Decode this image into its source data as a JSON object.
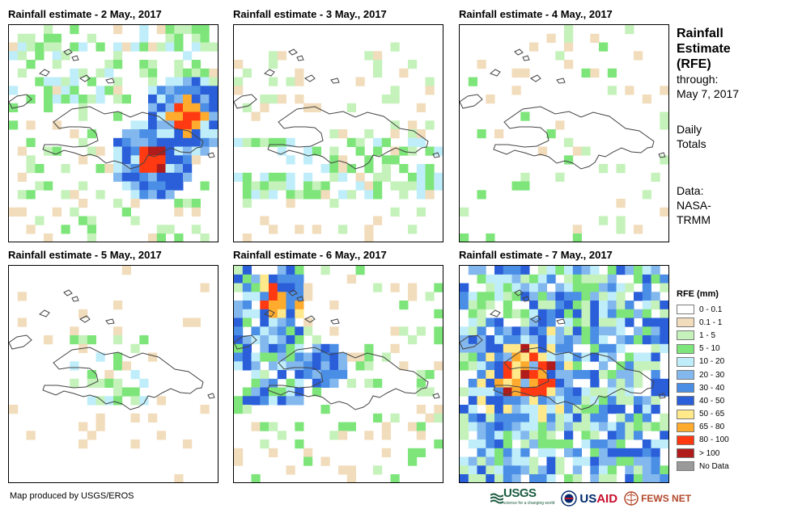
{
  "panels": [
    {
      "title": "Rainfall estimate - 2 May., 2017"
    },
    {
      "title": "Rainfall estimate - 3 May., 2017"
    },
    {
      "title": "Rainfall estimate - 4 May., 2017"
    },
    {
      "title": "Rainfall estimate - 5 May., 2017"
    },
    {
      "title": "Rainfall estimate - 6 May., 2017"
    },
    {
      "title": "Rainfall estimate - 7 May., 2017"
    }
  ],
  "side": {
    "title_line1": "Rainfall",
    "title_line2": "Estimate",
    "title_line3": "(RFE)",
    "through_label": "through:",
    "through_date": "May 7, 2017",
    "totals_line1": "Daily",
    "totals_line2": "Totals",
    "data_line1": "Data:",
    "data_line2": "NASA-",
    "data_line3": "TRMM"
  },
  "legend": {
    "title": "RFE (mm)",
    "items": [
      {
        "label": "0 - 0.1",
        "color": "#ffffff"
      },
      {
        "label": "0.1 - 1",
        "color": "#f1dcbb"
      },
      {
        "label": "1 - 5",
        "color": "#c4f2ba"
      },
      {
        "label": "5 - 10",
        "color": "#7ee57b"
      },
      {
        "label": "10 - 20",
        "color": "#bfeefa"
      },
      {
        "label": "20 - 30",
        "color": "#83b8ee"
      },
      {
        "label": "30 - 40",
        "color": "#4b8ee6"
      },
      {
        "label": "40 - 50",
        "color": "#2a5fd9"
      },
      {
        "label": "50 - 65",
        "color": "#ffe98a"
      },
      {
        "label": "65 - 80",
        "color": "#ffab2e"
      },
      {
        "label": "80 - 100",
        "color": "#ff3a12"
      },
      {
        "label": "> 100",
        "color": "#b01b1b"
      },
      {
        "label": "No Data",
        "color": "#9a9a9a"
      }
    ]
  },
  "footer": {
    "credit": "Map produced by USGS/EROS",
    "logo_usgs": "USGS",
    "logo_usgs_tagline": "science for a changing world",
    "logo_usaid_a": "US",
    "logo_usaid_b": "AID",
    "logo_fews": "FEWS NET"
  }
}
